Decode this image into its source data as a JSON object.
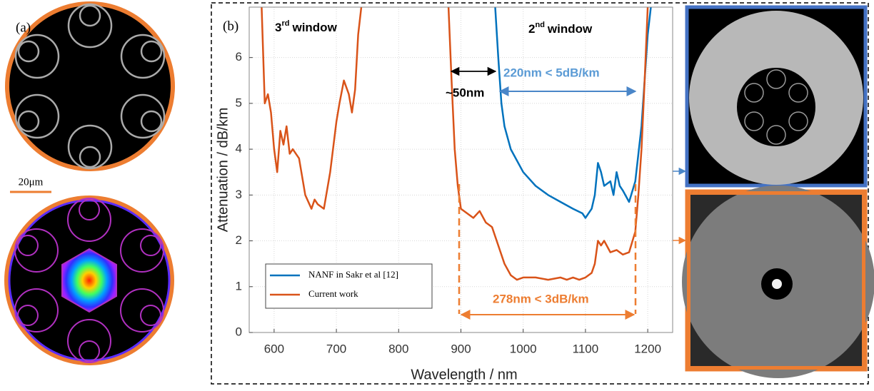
{
  "panel_a": {
    "label": "(a)",
    "scale_bar": "20μm"
  },
  "panel_b": {
    "label": "(b)"
  },
  "chart_data": {
    "type": "line",
    "xlabel": "Wavelength / nm",
    "ylabel": "Attenuation / dB/km",
    "xlim": [
      560,
      1240
    ],
    "ylim": [
      0,
      7.1
    ],
    "xticks": [
      600,
      700,
      800,
      900,
      1000,
      1100,
      1200
    ],
    "yticks": [
      0,
      1,
      2,
      3,
      4,
      5,
      6
    ],
    "grid": true,
    "series": [
      {
        "name": "NANF in Sakr et al [12]",
        "color": "#0072bd",
        "x": [
          955,
          960,
          965,
          970,
          980,
          1000,
          1020,
          1040,
          1060,
          1080,
          1095,
          1100,
          1110,
          1115,
          1120,
          1125,
          1130,
          1140,
          1145,
          1150,
          1155,
          1160,
          1170,
          1180,
          1190,
          1200,
          1205
        ],
        "values": [
          7.1,
          6.0,
          5.0,
          4.5,
          4.0,
          3.5,
          3.2,
          3.0,
          2.85,
          2.7,
          2.6,
          2.5,
          2.7,
          3.0,
          3.7,
          3.5,
          3.2,
          3.3,
          3.0,
          3.5,
          3.2,
          3.1,
          2.85,
          3.3,
          4.5,
          6.5,
          7.1
        ]
      },
      {
        "name": "Current work",
        "color": "#d95319",
        "x": [
          580,
          585,
          590,
          595,
          600,
          605,
          610,
          615,
          620,
          625,
          630,
          640,
          650,
          660,
          665,
          670,
          680,
          690,
          700,
          705,
          712,
          720,
          725,
          730,
          735,
          740,
          810,
          880,
          885,
          890,
          895,
          900,
          910,
          920,
          930,
          940,
          950,
          960,
          970,
          980,
          990,
          1000,
          1020,
          1040,
          1060,
          1070,
          1080,
          1090,
          1100,
          1110,
          1115,
          1120,
          1125,
          1130,
          1140,
          1150,
          1160,
          1170,
          1180,
          1185,
          1190,
          1195,
          1200
        ],
        "values": [
          7.1,
          5.0,
          5.2,
          4.8,
          4.0,
          3.5,
          4.4,
          4.1,
          4.5,
          3.9,
          4.0,
          3.8,
          3.0,
          2.7,
          2.9,
          2.8,
          2.7,
          3.5,
          4.6,
          5.0,
          5.5,
          5.2,
          4.8,
          5.3,
          6.5,
          7.1,
          null,
          7.1,
          5.5,
          4.0,
          3.2,
          2.7,
          2.6,
          2.5,
          2.65,
          2.4,
          2.3,
          1.9,
          1.5,
          1.25,
          1.15,
          1.2,
          1.2,
          1.15,
          1.2,
          1.15,
          1.2,
          1.15,
          1.2,
          1.3,
          1.5,
          2.0,
          1.9,
          2.0,
          1.75,
          1.8,
          1.7,
          1.75,
          2.2,
          3.0,
          4.0,
          5.5,
          7.1
        ]
      }
    ],
    "annotations": {
      "third_window": [
        "3",
        "rd",
        "window"
      ],
      "second_window": [
        "2",
        "nd",
        "window"
      ],
      "offset": "~50nm",
      "nanf_band": "220nm < 5dB/km",
      "current_band": "278nm < 3dB/km"
    }
  }
}
